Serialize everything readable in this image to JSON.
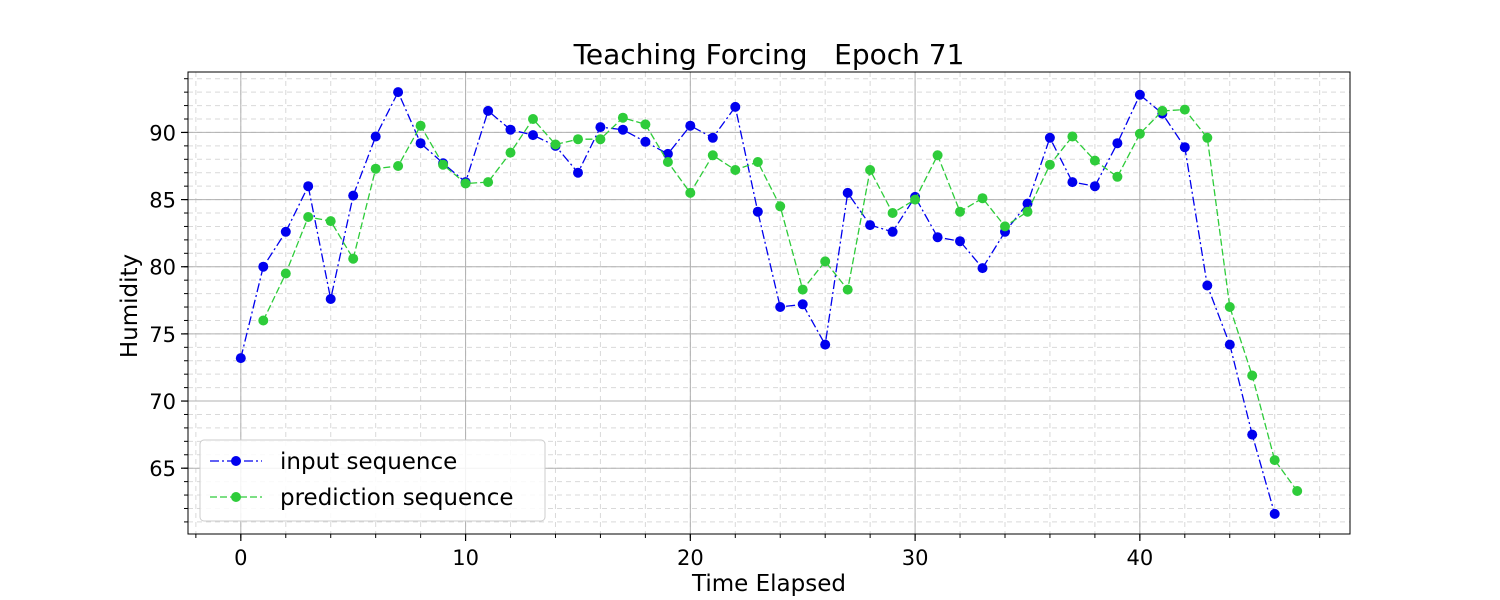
{
  "chart_data": {
    "type": "line",
    "title": "Teaching Forcing   Epoch 71",
    "xlabel": "Time Elapsed",
    "ylabel": "Humidity",
    "xlim": [
      -2.35,
      49.35
    ],
    "ylim": [
      60.1,
      94.5
    ],
    "xticks": [
      0,
      10,
      20,
      30,
      40
    ],
    "yticks": [
      65,
      70,
      75,
      80,
      85,
      90
    ],
    "x_minor_step": 2,
    "y_minor_step": 1,
    "grid": true,
    "legend_position": "lower-left",
    "series": [
      {
        "name": "input sequence",
        "color": "#0000ee",
        "linestyle": "dashdot",
        "x": [
          0,
          1,
          2,
          3,
          4,
          5,
          6,
          7,
          8,
          9,
          10,
          11,
          12,
          13,
          14,
          15,
          16,
          17,
          18,
          19,
          20,
          21,
          22,
          23,
          24,
          25,
          26,
          27,
          28,
          29,
          30,
          31,
          32,
          33,
          34,
          35,
          36,
          37,
          38,
          39,
          40,
          41,
          42,
          43,
          44,
          45,
          46
        ],
        "values": [
          73.2,
          80.0,
          82.6,
          86.0,
          77.6,
          85.3,
          89.7,
          93.0,
          89.2,
          87.7,
          86.3,
          91.6,
          90.2,
          89.8,
          89.0,
          87.0,
          90.4,
          90.2,
          89.3,
          88.4,
          90.5,
          89.6,
          91.9,
          84.1,
          77.0,
          77.2,
          74.2,
          85.5,
          83.1,
          82.6,
          85.2,
          82.2,
          81.9,
          79.9,
          82.6,
          84.7,
          89.6,
          86.3,
          86.0,
          89.2,
          92.8,
          91.4,
          88.9,
          78.6,
          74.2,
          67.5,
          61.6
        ]
      },
      {
        "name": "prediction sequence",
        "color": "#2ecc3a",
        "linestyle": "dashed",
        "x": [
          1,
          2,
          3,
          4,
          5,
          6,
          7,
          8,
          9,
          10,
          11,
          12,
          13,
          14,
          15,
          16,
          17,
          18,
          19,
          20,
          21,
          22,
          23,
          24,
          25,
          26,
          27,
          28,
          29,
          30,
          31,
          32,
          33,
          34,
          35,
          36,
          37,
          38,
          39,
          40,
          41,
          42,
          43,
          44,
          45,
          46,
          47
        ],
        "values": [
          76.0,
          79.5,
          83.7,
          83.4,
          80.6,
          87.3,
          87.5,
          90.5,
          87.6,
          86.2,
          86.3,
          88.5,
          91.0,
          89.1,
          89.5,
          89.5,
          91.1,
          90.6,
          87.8,
          85.5,
          88.3,
          87.2,
          87.8,
          84.5,
          78.3,
          80.4,
          78.3,
          87.2,
          84.0,
          85.0,
          88.3,
          84.1,
          85.1,
          83.0,
          84.1,
          87.6,
          89.7,
          87.9,
          86.7,
          89.9,
          91.6,
          91.7,
          89.6,
          77.0,
          71.9,
          65.6,
          63.3
        ]
      }
    ]
  }
}
